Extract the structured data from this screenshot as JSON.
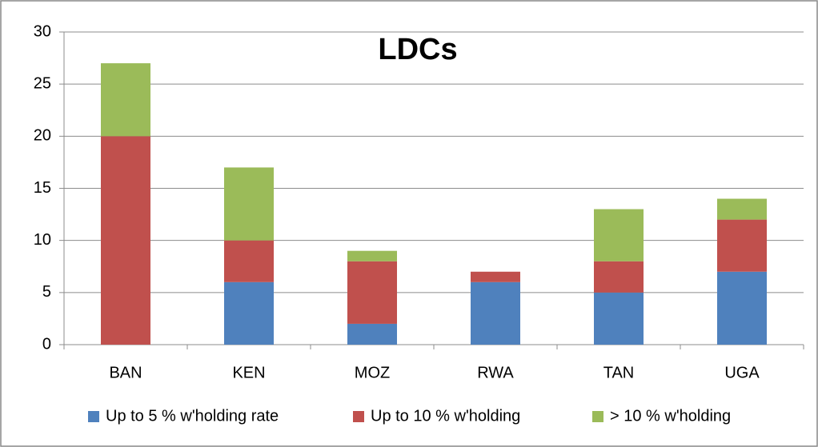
{
  "chart_data": {
    "type": "bar",
    "stacked": true,
    "title": "LDCs",
    "categories": [
      "BAN",
      "KEN",
      "MOZ",
      "RWA",
      "TAN",
      "UGA"
    ],
    "series": [
      {
        "name": "Up to 5 % w'holding rate",
        "color": "#4f81bd",
        "values": [
          0,
          6,
          2,
          6,
          5,
          7
        ]
      },
      {
        "name": "Up to 10 % w'holding",
        "color": "#c0504d",
        "values": [
          20,
          4,
          6,
          1,
          3,
          5
        ]
      },
      {
        "name": "> 10 % w'holding",
        "color": "#9bbb59",
        "values": [
          7,
          7,
          1,
          0,
          5,
          2
        ]
      }
    ],
    "ylim": [
      0,
      30
    ],
    "yticks": [
      0,
      5,
      10,
      15,
      20,
      25,
      30
    ],
    "grid": true,
    "legend": "bottom"
  }
}
